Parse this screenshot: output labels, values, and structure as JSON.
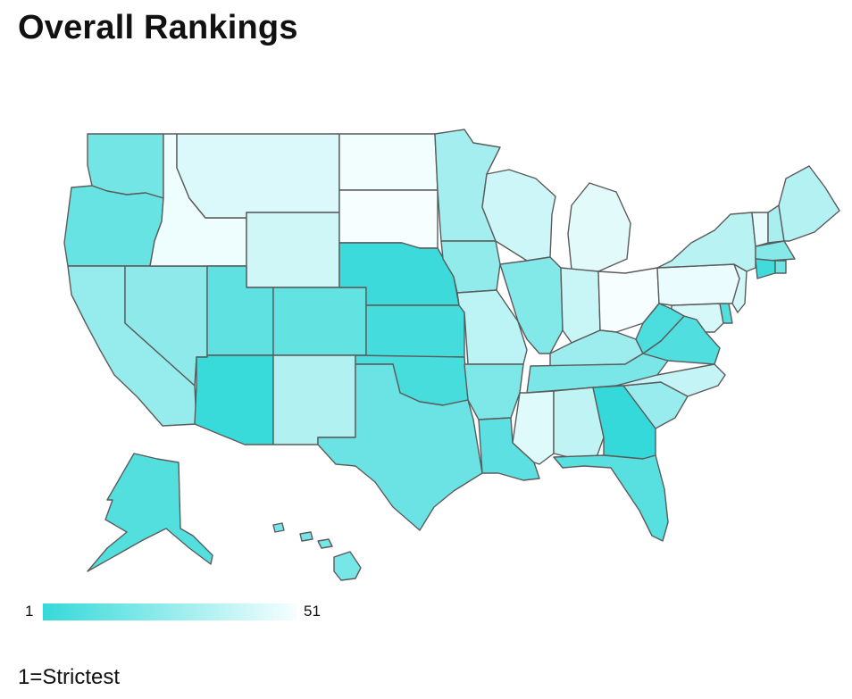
{
  "title": "Overall Rankings",
  "legend": {
    "min_label": "1",
    "max_label": "51",
    "color_strict": "#35d9d9",
    "color_lenient": "#f6feff"
  },
  "note": "1=Strictest",
  "states": [
    {
      "id": "WA",
      "name": "Washington",
      "rank": 17
    },
    {
      "id": "OR",
      "name": "Oregon",
      "rank": 14
    },
    {
      "id": "CA",
      "name": "California",
      "rank": 26
    },
    {
      "id": "NV",
      "name": "Nevada",
      "rank": 24
    },
    {
      "id": "ID",
      "name": "Idaho",
      "rank": 49
    },
    {
      "id": "MT",
      "name": "Montana",
      "rank": 44
    },
    {
      "id": "WY",
      "name": "Wyoming",
      "rank": 41
    },
    {
      "id": "UT",
      "name": "Utah",
      "rank": 12
    },
    {
      "id": "AZ",
      "name": "Arizona",
      "rank": 2
    },
    {
      "id": "CO",
      "name": "Colorado",
      "rank": 13
    },
    {
      "id": "NM",
      "name": "New Mexico",
      "rank": 33
    },
    {
      "id": "ND",
      "name": "North Dakota",
      "rank": 50
    },
    {
      "id": "SD",
      "name": "South Dakota",
      "rank": 51
    },
    {
      "id": "NE",
      "name": "Nebraska",
      "rank": 3
    },
    {
      "id": "KS",
      "name": "Kansas",
      "rank": 5
    },
    {
      "id": "OK",
      "name": "Oklahoma",
      "rank": 6
    },
    {
      "id": "TX",
      "name": "Texas",
      "rank": 15
    },
    {
      "id": "MN",
      "name": "Minnesota",
      "rank": 30
    },
    {
      "id": "IA",
      "name": "Iowa",
      "rank": 25
    },
    {
      "id": "MO",
      "name": "Missouri",
      "rank": 36
    },
    {
      "id": "AR",
      "name": "Arkansas",
      "rank": 20
    },
    {
      "id": "LA",
      "name": "Louisiana",
      "rank": 11
    },
    {
      "id": "WI",
      "name": "Wisconsin",
      "rank": 40
    },
    {
      "id": "IL",
      "name": "Illinois",
      "rank": 21
    },
    {
      "id": "MI",
      "name": "Michigan",
      "rank": 46
    },
    {
      "id": "IN",
      "name": "Indiana",
      "rank": 39
    },
    {
      "id": "OH",
      "name": "Ohio",
      "rank": 51
    },
    {
      "id": "KY",
      "name": "Kentucky",
      "rank": 28
    },
    {
      "id": "TN",
      "name": "Tennessee",
      "rank": 19
    },
    {
      "id": "MS",
      "name": "Mississippi",
      "rank": 45
    },
    {
      "id": "AL",
      "name": "Alabama",
      "rank": 37
    },
    {
      "id": "GA",
      "name": "Georgia",
      "rank": 1
    },
    {
      "id": "FL",
      "name": "Florida",
      "rank": 10
    },
    {
      "id": "SC",
      "name": "South Carolina",
      "rank": 27
    },
    {
      "id": "NC",
      "name": "North Carolina",
      "rank": 38
    },
    {
      "id": "VA",
      "name": "Virginia",
      "rank": 8
    },
    {
      "id": "WV",
      "name": "West Virginia",
      "rank": 7
    },
    {
      "id": "PA",
      "name": "Pennsylvania",
      "rank": 48
    },
    {
      "id": "NY",
      "name": "New York",
      "rank": 35
    },
    {
      "id": "VT",
      "name": "Vermont",
      "rank": 47
    },
    {
      "id": "NH",
      "name": "New Hampshire",
      "rank": 31
    },
    {
      "id": "ME",
      "name": "Maine",
      "rank": 34
    },
    {
      "id": "MA",
      "name": "Massachusetts",
      "rank": 22
    },
    {
      "id": "RI",
      "name": "Rhode Island",
      "rank": 16
    },
    {
      "id": "CT",
      "name": "Connecticut",
      "rank": 4
    },
    {
      "id": "NJ",
      "name": "New Jersey",
      "rank": 42
    },
    {
      "id": "DE",
      "name": "Delaware",
      "rank": 9
    },
    {
      "id": "MD",
      "name": "Maryland",
      "rank": 43
    },
    {
      "id": "AK",
      "name": "Alaska",
      "rank": 9
    },
    {
      "id": "HI",
      "name": "Hawaii",
      "rank": 18
    }
  ]
}
